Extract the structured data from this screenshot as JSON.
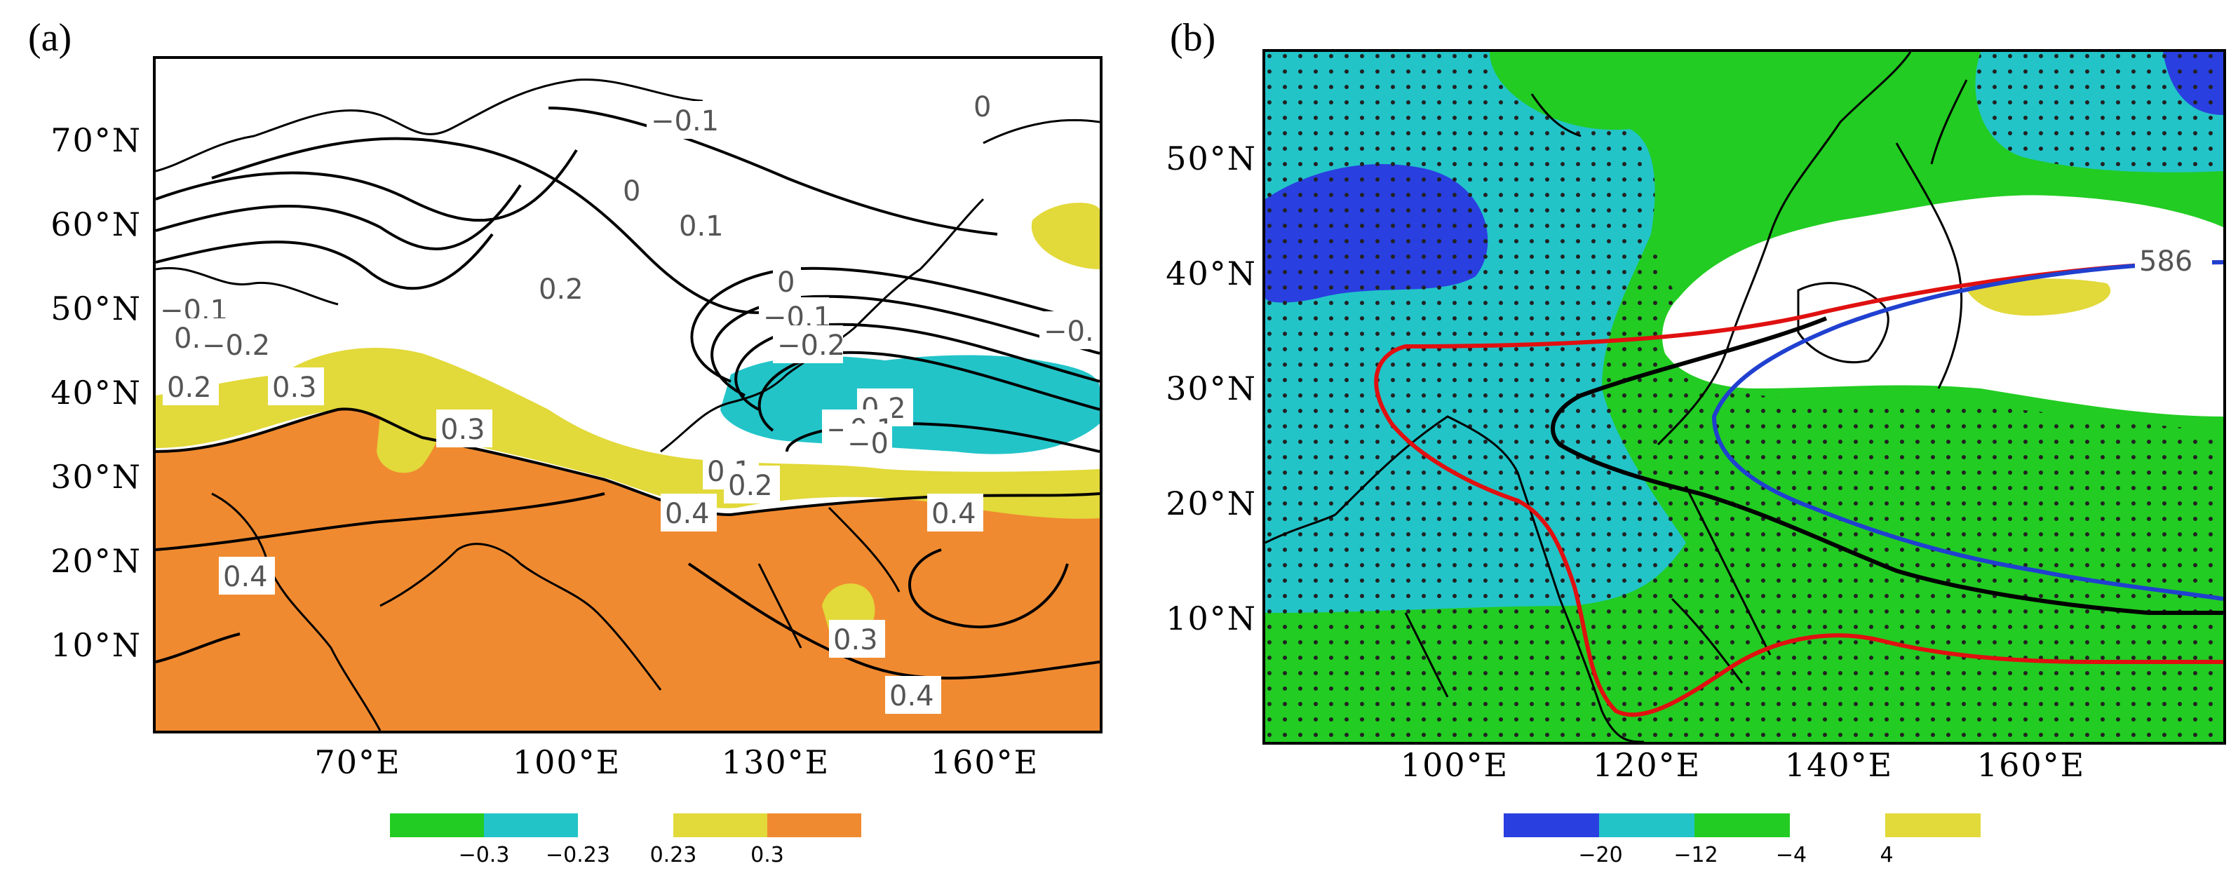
{
  "panels": {
    "a": {
      "label": "(a)",
      "lat_ticks": [
        "70°N",
        "60°N",
        "50°N",
        "40°N",
        "30°N",
        "20°N",
        "10°N"
      ],
      "lon_ticks": [
        "70°E",
        "100°E",
        "130°E",
        "160°E"
      ],
      "colorbar": {
        "colors": [
          "#22cc22",
          "#22c4c8",
          "#e2d93a",
          "#f08a30"
        ],
        "labels": [
          "−0.3",
          "−0.23",
          "0.23",
          "0.3"
        ]
      },
      "contour_labels": [
        "−0.1",
        "0",
        "0",
        "0.1",
        "0.2",
        "0",
        "−0.1",
        "−0.2",
        "−0.",
        "0.2",
        "−0.1",
        "0.1",
        "−0.2",
        "0.2",
        "0.3",
        "0.3",
        "−0.1",
        "−0",
        "0.1",
        "0.2",
        "0.4",
        "0.4",
        "0.3",
        "0.4",
        "0.4"
      ]
    },
    "b": {
      "label": "(b)",
      "lat_ticks": [
        "50°N",
        "40°N",
        "30°N",
        "20°N",
        "10°N"
      ],
      "lon_ticks": [
        "100°E",
        "120°E",
        "140°E",
        "160°E"
      ],
      "colorbar": {
        "colors": [
          "#2a3fe0",
          "#22c4c8",
          "#22cc22",
          "#e2d93a"
        ],
        "labels": [
          "−20",
          "−12",
          "−4",
          "4"
        ]
      },
      "contour_labels": [
        "586"
      ],
      "line_colors": [
        "#e01010",
        "#2040d0",
        "#000000"
      ]
    }
  }
}
